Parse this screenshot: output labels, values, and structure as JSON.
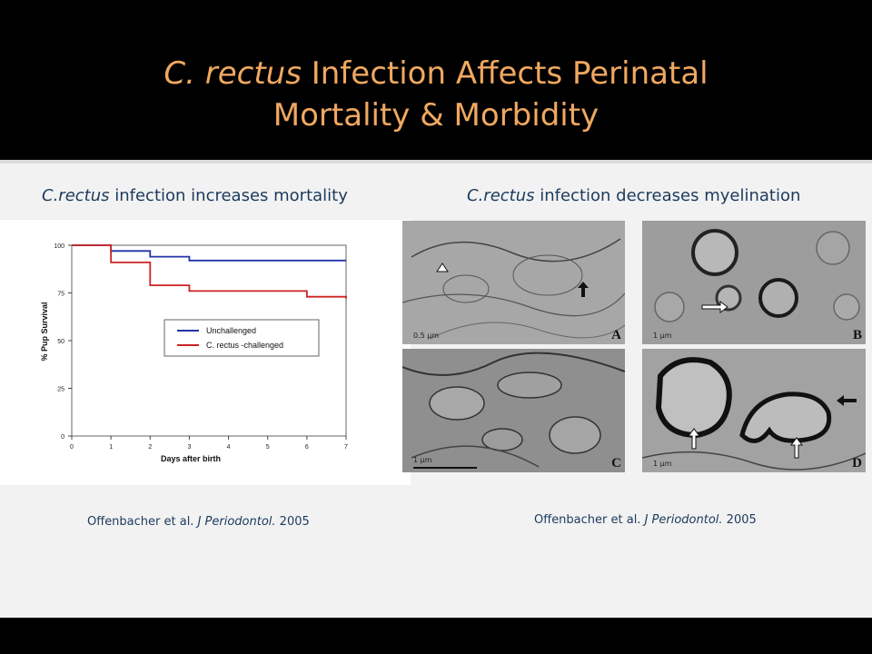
{
  "slide": {
    "title_line1_italic": "C. rectus",
    "title_line1_rest": " Infection Affects Perinatal",
    "title_line2": "Mortality & Morbidity"
  },
  "left": {
    "subtitle_italic": "C.rectus",
    "subtitle_rest": " infection increases mortality",
    "citation_prefix": "Offenbacher et al. ",
    "citation_journal": "J Periodontol.",
    "citation_year": " 2005"
  },
  "right": {
    "subtitle_italic": "C.rectus",
    "subtitle_rest": " infection decreases myelination",
    "citation_prefix": "Offenbacher et al. ",
    "citation_journal": "J Periodontol.",
    "citation_year": " 2005",
    "panels": [
      {
        "label": "A",
        "scale": "0.5 µm"
      },
      {
        "label": "B",
        "scale": "1 µm"
      },
      {
        "label": "C",
        "scale": "1 µm"
      },
      {
        "label": "D",
        "scale": "1 µm"
      }
    ]
  },
  "chart_data": {
    "type": "line",
    "step": true,
    "xlabel": "Days after birth",
    "ylabel": "% Pup Survival",
    "xlim": [
      0,
      7
    ],
    "ylim": [
      0,
      100
    ],
    "xticks": [
      0,
      1,
      2,
      3,
      4,
      5,
      6,
      7
    ],
    "yticks": [
      0,
      25,
      50,
      75,
      100
    ],
    "legend_position": "center",
    "series": [
      {
        "name": "Unchallenged",
        "color": "#2233aa",
        "x": [
          0,
          1,
          2,
          3,
          7
        ],
        "y": [
          100,
          97,
          94,
          92,
          92
        ]
      },
      {
        "name": "C. rectus -challenged",
        "color": "#cc2222",
        "x": [
          0,
          1,
          2,
          3,
          6,
          7
        ],
        "y": [
          100,
          91,
          79,
          76,
          73,
          72
        ]
      }
    ]
  }
}
